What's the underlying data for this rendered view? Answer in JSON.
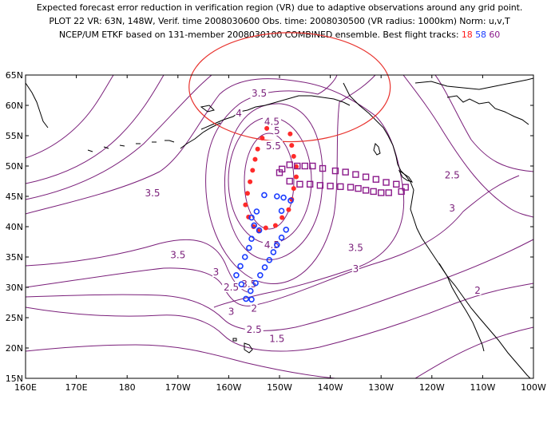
{
  "header": {
    "line1": "Expected forecast error reduction in verification region (VR) due to adaptive observations around any grid point.",
    "line2": "PLOT 22 VR: 63N, 148W, Verif. time 2008030600 Obs. time: 2008030500 (VR radius: 1000km) Norm: u,v,T",
    "line3_prefix": "NCEP/UM ETKF based on 131-member 2008030100 COMBINED ensemble.  Best flight tracks:",
    "track_red": "18",
    "track_blue": "58",
    "track_purple": "60"
  },
  "map": {
    "lat_labels": [
      "65N",
      "60N",
      "55N",
      "50N",
      "45N",
      "40N",
      "35N",
      "30N",
      "25N",
      "20N",
      "15N"
    ],
    "lon_labels": [
      "160E",
      "170E",
      "180",
      "170W",
      "160W",
      "150W",
      "140W",
      "130W",
      "120W",
      "110W",
      "100W"
    ],
    "contour_labels": [
      {
        "text": "3.5",
        "lon": -154,
        "lat": 62
      },
      {
        "text": "4",
        "lon": -158,
        "lat": 58.7
      },
      {
        "text": "4.5",
        "lon": -151.5,
        "lat": 57.3
      },
      {
        "text": "5",
        "lon": -150.5,
        "lat": 55.8
      },
      {
        "text": "5.5",
        "lon": -151.2,
        "lat": 53.3
      },
      {
        "text": "3.5",
        "lon": -175,
        "lat": 45.5
      },
      {
        "text": "3.5",
        "lon": -170,
        "lat": 35.3
      },
      {
        "text": "3",
        "lon": -162.5,
        "lat": 32.5
      },
      {
        "text": "2.5",
        "lon": -159.5,
        "lat": 30
      },
      {
        "text": "2",
        "lon": -155,
        "lat": 26.5
      },
      {
        "text": "1.5",
        "lon": -150.5,
        "lat": 21.5
      },
      {
        "text": "3.5",
        "lon": -156,
        "lat": 30.5
      },
      {
        "text": "3",
        "lon": -159.5,
        "lat": 26
      },
      {
        "text": "2.5",
        "lon": -155,
        "lat": 23
      },
      {
        "text": "4.5",
        "lon": -151.5,
        "lat": 37
      },
      {
        "text": "3.5",
        "lon": -135,
        "lat": 36.5
      },
      {
        "text": "3",
        "lon": -135,
        "lat": 33
      },
      {
        "text": "2.5",
        "lon": -116,
        "lat": 48.5
      },
      {
        "text": "3",
        "lon": -116,
        "lat": 43
      },
      {
        "text": "2",
        "lon": -111,
        "lat": 29.5
      }
    ],
    "verification_region": {
      "lat": 63,
      "lon": -148,
      "radius_km": 1000
    },
    "track_18_red": [
      [
        -152.5,
        56.2
      ],
      [
        -153.4,
        54.6
      ],
      [
        -154.3,
        52.8
      ],
      [
        -154.8,
        51.1
      ],
      [
        -155.3,
        49.3
      ],
      [
        -155.8,
        47.4
      ],
      [
        -156.3,
        45.5
      ],
      [
        -156.7,
        43.6
      ],
      [
        -156.1,
        41.6
      ],
      [
        -155.1,
        40.0
      ],
      [
        -154.1,
        39.3
      ],
      [
        -152.7,
        39.8
      ],
      [
        -150.8,
        40.2
      ],
      [
        -149.5,
        41.5
      ],
      [
        -148.2,
        42.8
      ],
      [
        -147.6,
        44.5
      ],
      [
        -147.2,
        46.3
      ],
      [
        -146.7,
        48.2
      ],
      [
        -146.7,
        49.9
      ],
      [
        -147.2,
        51.6
      ],
      [
        -147.6,
        53.4
      ],
      [
        -147.9,
        55.3
      ]
    ],
    "track_58_blue": [
      [
        -153.0,
        45.2
      ],
      [
        -150.5,
        45.0
      ],
      [
        -149.2,
        44.8
      ],
      [
        -147.8,
        44.3
      ],
      [
        -149.6,
        42.6
      ],
      [
        -154.5,
        42.5
      ],
      [
        -155.5,
        41.5
      ],
      [
        -155.0,
        40.2
      ],
      [
        -154.0,
        39.4
      ],
      [
        -148.7,
        39.5
      ],
      [
        -149.6,
        38.2
      ],
      [
        -150.5,
        37.0
      ],
      [
        -151.2,
        35.8
      ],
      [
        -152.0,
        34.5
      ],
      [
        -152.9,
        33.3
      ],
      [
        -153.8,
        32.0
      ],
      [
        -154.7,
        30.7
      ],
      [
        -155.7,
        29.4
      ],
      [
        -156.6,
        28.1
      ],
      [
        -155.5,
        38.0
      ],
      [
        -156.0,
        36.5
      ],
      [
        -156.8,
        35.0
      ],
      [
        -157.7,
        33.5
      ],
      [
        -158.5,
        32.0
      ],
      [
        -157.5,
        30.5
      ],
      [
        -155.5,
        28.0
      ]
    ],
    "track_60_purple": [
      [
        -149.5,
        49.5
      ],
      [
        -148.0,
        50.2
      ],
      [
        -146.5,
        50.0
      ],
      [
        -145.0,
        50.0
      ],
      [
        -143.5,
        50.0
      ],
      [
        -141.5,
        49.6
      ],
      [
        -139.0,
        49.2
      ],
      [
        -137.0,
        49.0
      ],
      [
        -135.0,
        48.6
      ],
      [
        -133.0,
        48.2
      ],
      [
        -131.0,
        47.8
      ],
      [
        -129.0,
        47.3
      ],
      [
        -127.0,
        47.0
      ],
      [
        -125.2,
        46.5
      ],
      [
        -126.0,
        45.8
      ],
      [
        -128.5,
        45.6
      ],
      [
        -130.0,
        45.6
      ],
      [
        -131.5,
        45.8
      ],
      [
        -133.0,
        46.0
      ],
      [
        -134.5,
        46.3
      ],
      [
        -136.0,
        46.5
      ],
      [
        -138.0,
        46.6
      ],
      [
        -140.0,
        46.7
      ],
      [
        -142.0,
        46.8
      ],
      [
        -144.0,
        47.0
      ],
      [
        -146.0,
        47.0
      ],
      [
        -148.0,
        47.5
      ],
      [
        -150.0,
        48.9
      ]
    ],
    "colors": {
      "contour": "#7a1f7a",
      "coast": "#000000",
      "vr_circle": "#e8322d",
      "track_red": "#ff2a2a",
      "track_blue": "#1a3cff",
      "track_purple": "#8b1a8b"
    }
  }
}
